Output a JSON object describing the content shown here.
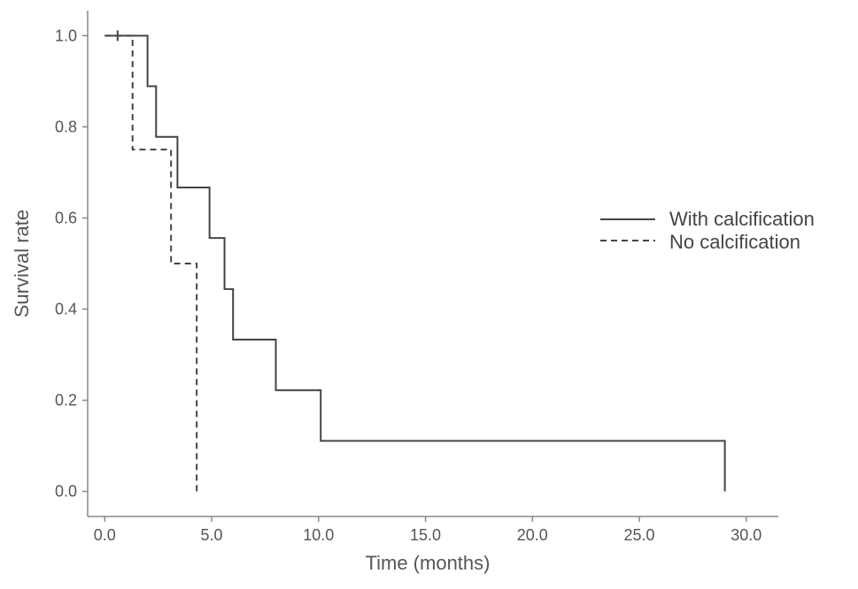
{
  "chart_data": {
    "type": "line",
    "subtype": "kaplan-meier-step",
    "xlabel": "Time (months)",
    "ylabel": "Survival rate",
    "xlim": [
      -0.8,
      31.5
    ],
    "ylim": [
      -0.055,
      1.055
    ],
    "x_ticks": [
      0,
      5,
      10,
      15,
      20,
      25,
      30
    ],
    "x_tick_labels": [
      "0.0",
      "5.0",
      "10.0",
      "15.0",
      "20.0",
      "25.0",
      "30.0"
    ],
    "y_ticks": [
      0,
      0.2,
      0.4,
      0.6,
      0.8,
      1.0
    ],
    "y_tick_labels": [
      "0.0",
      "0.2",
      "0.4",
      "0.6",
      "0.8",
      "1.0"
    ],
    "grid": false,
    "legend_position": "right",
    "series": [
      {
        "name": "With calcification",
        "line_style": "solid",
        "color": "#444444",
        "steps": [
          {
            "x": 0.0,
            "y": 1.0
          },
          {
            "x": 2.0,
            "y": 0.889
          },
          {
            "x": 2.4,
            "y": 0.778
          },
          {
            "x": 3.4,
            "y": 0.667
          },
          {
            "x": 4.9,
            "y": 0.556
          },
          {
            "x": 5.6,
            "y": 0.444
          },
          {
            "x": 6.0,
            "y": 0.333
          },
          {
            "x": 8.0,
            "y": 0.222
          },
          {
            "x": 10.1,
            "y": 0.111
          },
          {
            "x": 29.0,
            "y": 0.0
          }
        ],
        "censor_marks": [
          {
            "x": 0.6,
            "y": 1.0
          }
        ]
      },
      {
        "name": "No calcification",
        "line_style": "dashed",
        "color": "#444444",
        "steps": [
          {
            "x": 0.0,
            "y": 1.0
          },
          {
            "x": 1.3,
            "y": 0.75
          },
          {
            "x": 3.1,
            "y": 0.5
          },
          {
            "x": 4.3,
            "y": 0.0
          }
        ],
        "censor_marks": []
      }
    ]
  }
}
